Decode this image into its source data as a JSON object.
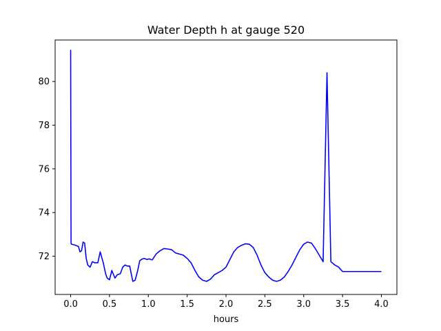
{
  "chart_data": {
    "type": "line",
    "title": "Water Depth h at gauge 520",
    "xlabel": "hours",
    "ylabel": "",
    "xlim": [
      -0.2,
      4.2
    ],
    "ylim": [
      70.25,
      81.9
    ],
    "grid": false,
    "xticks": [
      0.0,
      0.5,
      1.0,
      1.5,
      2.0,
      2.5,
      3.0,
      3.5,
      4.0
    ],
    "xtick_labels": [
      "0.0",
      "0.5",
      "1.0",
      "1.5",
      "2.0",
      "2.5",
      "3.0",
      "3.5",
      "4.0"
    ],
    "yticks": [
      72,
      74,
      76,
      78,
      80
    ],
    "ytick_labels": [
      "72",
      "74",
      "76",
      "78",
      "80"
    ],
    "series": [
      {
        "color": "#0000ff",
        "x": [
          0.0,
          0.0,
          0.005,
          0.01,
          0.05,
          0.1,
          0.12,
          0.14,
          0.16,
          0.18,
          0.2,
          0.22,
          0.25,
          0.28,
          0.31,
          0.35,
          0.38,
          0.42,
          0.45,
          0.47,
          0.5,
          0.53,
          0.57,
          0.6,
          0.64,
          0.67,
          0.7,
          0.73,
          0.76,
          0.8,
          0.83,
          0.86,
          0.89,
          0.92,
          0.95,
          0.98,
          1.01,
          1.05,
          1.1,
          1.15,
          1.2,
          1.25,
          1.3,
          1.35,
          1.4,
          1.45,
          1.5,
          1.55,
          1.6,
          1.65,
          1.7,
          1.75,
          1.8,
          1.85,
          1.9,
          1.95,
          2.0,
          2.05,
          2.1,
          2.15,
          2.2,
          2.25,
          2.3,
          2.35,
          2.4,
          2.45,
          2.5,
          2.55,
          2.6,
          2.65,
          2.7,
          2.75,
          2.8,
          2.85,
          2.9,
          2.95,
          3.0,
          3.05,
          3.1,
          3.15,
          3.2,
          3.25,
          3.3,
          3.35,
          3.4,
          3.45,
          3.5,
          3.55,
          3.6,
          3.65,
          3.7,
          3.75,
          3.8,
          3.85,
          3.9,
          3.92,
          3.92,
          3.93,
          3.95,
          3.97,
          4.0
        ],
        "y": [
          81.45,
          81.2,
          72.6,
          72.55,
          72.52,
          72.45,
          72.2,
          72.25,
          72.65,
          72.6,
          71.9,
          71.6,
          71.5,
          71.75,
          71.7,
          71.7,
          72.2,
          71.7,
          71.2,
          71.0,
          70.92,
          71.35,
          71.0,
          71.15,
          71.2,
          71.5,
          71.6,
          71.55,
          71.55,
          70.85,
          70.9,
          71.3,
          71.8,
          71.87,
          71.9,
          71.85,
          71.88,
          71.83,
          72.1,
          72.25,
          72.35,
          72.33,
          72.3,
          72.15,
          72.1,
          72.05,
          71.9,
          71.7,
          71.35,
          71.05,
          70.9,
          70.85,
          70.95,
          71.15,
          71.25,
          71.35,
          71.5,
          71.85,
          72.2,
          72.4,
          72.5,
          72.57,
          72.55,
          72.4,
          72.05,
          71.6,
          71.25,
          71.05,
          70.9,
          70.85,
          70.9,
          71.05,
          71.3,
          71.6,
          71.95,
          72.3,
          72.55,
          72.65,
          72.6,
          72.35,
          72.05,
          71.75,
          80.4,
          71.75,
          71.6,
          71.5,
          71.3,
          71.3,
          71.3,
          71.3,
          71.3,
          71.3,
          71.3,
          71.3,
          71.3,
          71.3,
          71.3,
          71.3,
          71.3,
          71.3,
          71.3
        ]
      }
    ]
  }
}
